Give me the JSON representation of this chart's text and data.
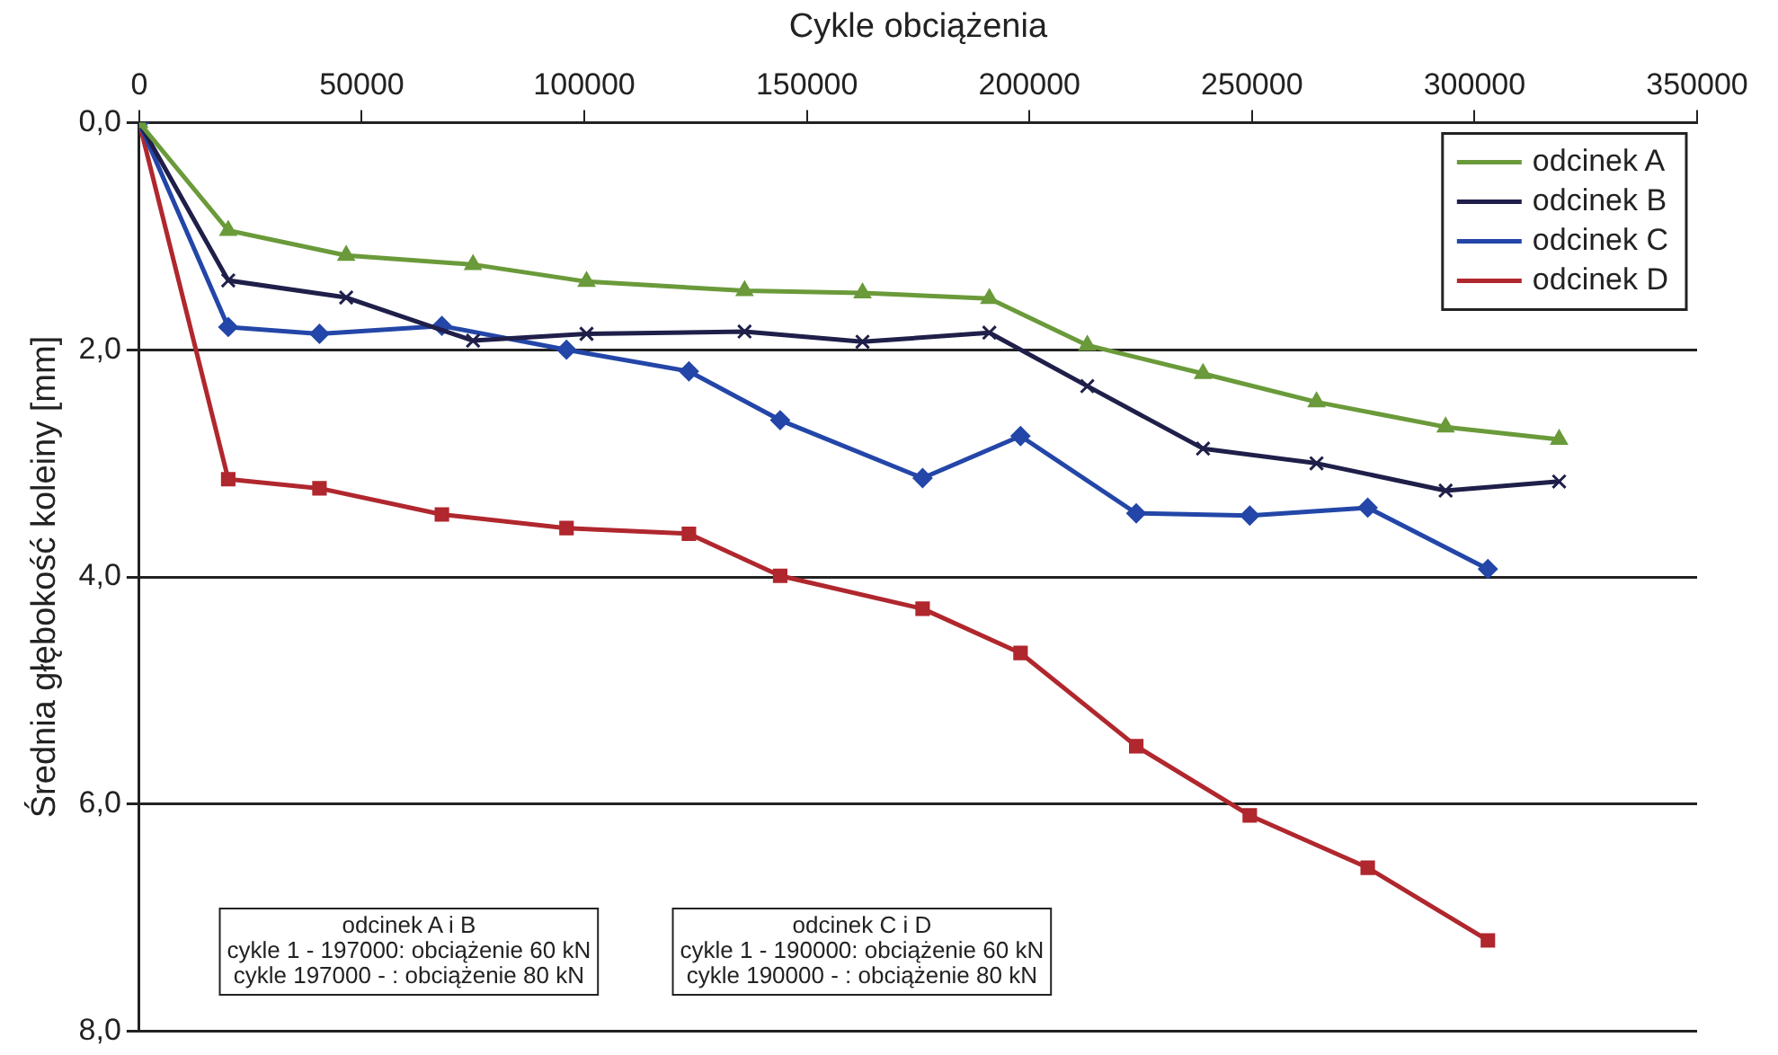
{
  "chart_data": {
    "type": "line",
    "xlabel": "Cykle obciążenia",
    "ylabel": "Średnia głębokość koleiny [mm]",
    "xlim": [
      0,
      350000
    ],
    "xticks": [
      0,
      50000,
      100000,
      150000,
      200000,
      250000,
      300000,
      350000
    ],
    "ylim": [
      8,
      0
    ],
    "yticks": [
      {
        "value": 0,
        "label": "0,0"
      },
      {
        "value": 2,
        "label": "2,0"
      },
      {
        "value": 4,
        "label": "4,0"
      },
      {
        "value": 6,
        "label": "6,0"
      },
      {
        "value": 8,
        "label": "8,0"
      }
    ],
    "grid": "y",
    "legend": "top right",
    "line_style": "solid",
    "series": [
      {
        "name": "odcinek A",
        "color": "#6a9a3a",
        "marker": "triangle",
        "x": [
          0,
          20000,
          46500,
          75000,
          100500,
          136000,
          162500,
          191000,
          213000,
          239000,
          264500,
          293500,
          319000
        ],
        "values": [
          0,
          0.95,
          1.17,
          1.25,
          1.4,
          1.48,
          1.5,
          1.55,
          1.96,
          2.21,
          2.46,
          2.68,
          2.79
        ]
      },
      {
        "name": "odcinek B",
        "color": "#1f1f4a",
        "marker": "cross",
        "x": [
          0,
          20000,
          46500,
          75000,
          100500,
          136000,
          162500,
          191000,
          213000,
          239000,
          264500,
          293500,
          319000
        ],
        "values": [
          0,
          1.39,
          1.54,
          1.92,
          1.86,
          1.84,
          1.93,
          1.85,
          2.32,
          2.87,
          3.0,
          3.24,
          3.16
        ]
      },
      {
        "name": "odcinek C",
        "color": "#2346a8",
        "marker": "diamond",
        "x": [
          0,
          20000,
          40500,
          68000,
          96000,
          123500,
          144000,
          176000,
          198000,
          224000,
          249500,
          276000,
          303000
        ],
        "values": [
          0,
          1.8,
          1.86,
          1.79,
          2.0,
          2.19,
          2.62,
          3.13,
          2.76,
          3.44,
          3.46,
          3.39,
          3.93
        ]
      },
      {
        "name": "odcinek D",
        "color": "#b0272e",
        "marker": "square",
        "x": [
          0,
          20000,
          40500,
          68000,
          96000,
          123500,
          144000,
          176000,
          198000,
          224000,
          249500,
          276000,
          303000
        ],
        "values": [
          0,
          3.14,
          3.22,
          3.45,
          3.57,
          3.62,
          3.99,
          4.28,
          4.67,
          5.49,
          6.1,
          6.56,
          7.2
        ]
      }
    ],
    "annotations": [
      "odcinek A i B\ncykle 1 - 197000: obciążenie 60 kN\ncykle 197000 - : obciążenie 80 kN",
      "odcinek C i D\ncykle 1 - 190000: obciążenie 60 kN\ncykle 190000 - : obciążenie 80 kN"
    ]
  }
}
